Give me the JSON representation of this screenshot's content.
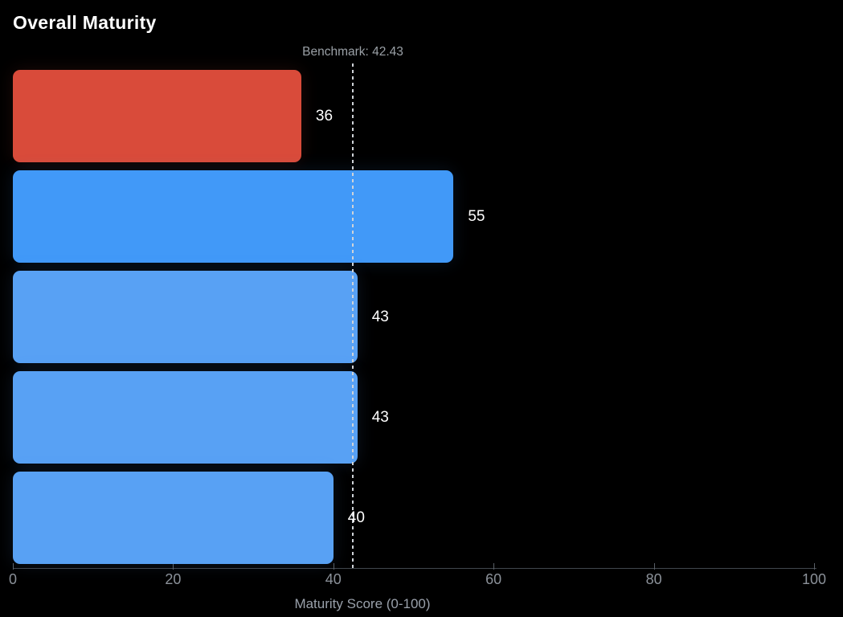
{
  "colors": {
    "background": "#000000",
    "bar_red": "#d94b3a",
    "bar_blue_bright": "#4199f8",
    "bar_blue_light": "#58a1f4",
    "value_label": "#ffffff",
    "muted_text": "#9aa0a6",
    "axis_line": "#41474d",
    "benchmark_dash": "#cfd3d8"
  },
  "chart_data": {
    "type": "bar",
    "orientation": "horizontal",
    "title": "Overall Maturity",
    "xlabel": "Maturity Score (0-100)",
    "xlim": [
      0,
      100
    ],
    "grid": false,
    "benchmark": {
      "value": 42.43,
      "label": "Benchmark: 42.43"
    },
    "x_ticks": [
      {
        "value": 0,
        "label": "0"
      },
      {
        "value": 20,
        "label": "20"
      },
      {
        "value": 40,
        "label": "40"
      },
      {
        "value": 60,
        "label": "60"
      },
      {
        "value": 80,
        "label": "80"
      },
      {
        "value": 100,
        "label": "100"
      }
    ],
    "bars": [
      {
        "value": 36,
        "label": "36",
        "color": "#d94b3a"
      },
      {
        "value": 55,
        "label": "55",
        "color": "#4199f8"
      },
      {
        "value": 43,
        "label": "43",
        "color": "#58a1f4"
      },
      {
        "value": 43,
        "label": "43",
        "color": "#58a1f4"
      },
      {
        "value": 40,
        "label": "40",
        "color": "#58a1f4"
      }
    ]
  }
}
